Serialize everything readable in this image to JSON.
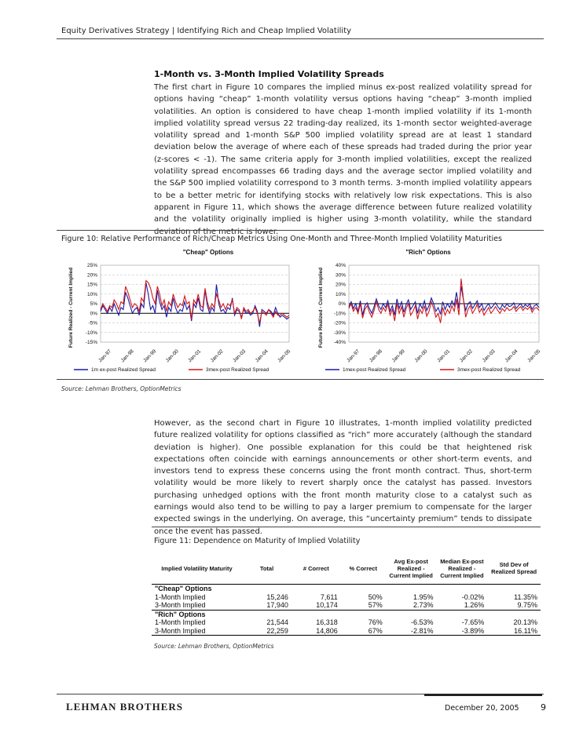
{
  "header": {
    "text": "Equity Derivatives Strategy | Identifying Rich and Cheap Implied Volatility"
  },
  "section": {
    "title": "1-Month vs. 3-Month Implied Volatility Spreads",
    "para1": "The first chart in Figure 10 compares the implied minus ex-post realized volatility spread for options having “cheap” 1-month volatility versus options having “cheap” 3-month implied volatilities. An option is considered to have cheap 1-month implied volatility if its 1-month implied volatility spread versus 22 trading-day realized, its 1-month sector weighted-average volatility spread and 1-month S&P 500 implied volatility spread are at least 1 standard deviation below the average of where each of these spreads had traded during the prior year (z-scores < -1). The same criteria apply for 3-month implied volatilities, except the realized volatility spread encompasses 66 trading days and the average sector implied volatility and the S&P 500 implied volatility correspond to 3 month terms. 3-month implied volatility appears to be a better metric for identifying stocks with relatively low risk expectations. This is also apparent in Figure 11, which shows the average difference between future realized volatility and the volatility originally implied is higher using 3-month volatility, while the standard deviation of the metric is lower.",
    "para2": "However, as the second chart in Figure 10 illustrates, 1-month implied volatility predicted future realized volatility for options classified as “rich” more accurately (although the standard deviation is higher). One possible explanation for this could be that heightened risk expectations often coincide with earnings announcements or other short-term events, and investors tend to express these concerns using the front month contract. Thus, short-term volatility would be more likely to revert sharply once the catalyst has passed. Investors purchasing unhedged options with the front month maturity close to a catalyst such as earnings would also tend to be willing to pay a larger premium to compensate for the larger expected swings in the underlying. On average, this “uncertainty premium” tends to dissipate once the event has passed."
  },
  "figure10": {
    "caption": "Figure 10: Relative Performance of Rich/Cheap Metrics Using One-Month and Three-Month Implied Volatility Maturities",
    "source": "Source: Lehman Brothers, OptionMetrics"
  },
  "chart_data": [
    {
      "type": "line",
      "title": "\"Cheap\" Options",
      "ylabel": "Future Realized - Current Implied",
      "ylim": [
        -0.15,
        0.25
      ],
      "yticks": [
        "25%",
        "20%",
        "15%",
        "10%",
        "5%",
        "0%",
        "-5%",
        "-10%",
        "-15%"
      ],
      "xticks": [
        "Jan-97",
        "Jan-98",
        "Jan-99",
        "Jan-00",
        "Jan-01",
        "Jan-02",
        "Jan-03",
        "Jan-04",
        "Jan-05"
      ],
      "series": [
        {
          "name": "1m ex-post Realized Spread",
          "color": "#1a1aa6",
          "values": [
            0.01,
            0.04,
            0.02,
            0.0,
            0.03,
            0.01,
            0.05,
            0.02,
            -0.01,
            0.03,
            0.02,
            0.11,
            0.08,
            0.04,
            0.0,
            0.02,
            0.03,
            -0.01,
            0.05,
            0.03,
            0.16,
            0.1,
            0.02,
            0.04,
            0.0,
            0.12,
            0.06,
            0.02,
            0.04,
            -0.02,
            0.03,
            0.01,
            0.08,
            0.03,
            0.0,
            0.02,
            0.01,
            0.06,
            0.02,
            0.04,
            -0.04,
            0.05,
            0.03,
            0.08,
            0.02,
            0.01,
            0.12,
            0.04,
            0.0,
            0.03,
            0.01,
            0.15,
            0.05,
            0.01,
            0.02,
            0.0,
            0.03,
            0.02,
            0.08,
            -0.01,
            0.02,
            0.01,
            -0.02,
            0.02,
            0.0,
            0.01,
            -0.01,
            0.0,
            0.04,
            0.01,
            -0.07,
            0.02,
            0.01,
            0.0,
            0.02,
            0.01,
            -0.01,
            0.03,
            0.0,
            -0.02,
            -0.01,
            -0.02,
            -0.03,
            -0.02
          ]
        },
        {
          "name": "3mex-post Realized Spread",
          "color": "#d01818",
          "values": [
            0.02,
            0.05,
            0.03,
            0.01,
            0.04,
            0.03,
            0.07,
            0.05,
            0.02,
            0.06,
            0.05,
            0.14,
            0.11,
            0.07,
            0.03,
            0.05,
            0.04,
            0.01,
            0.08,
            0.06,
            0.17,
            0.16,
            0.13,
            0.08,
            0.05,
            0.14,
            0.1,
            0.04,
            0.07,
            0.01,
            0.06,
            0.04,
            0.1,
            0.06,
            0.03,
            0.05,
            0.04,
            0.09,
            0.05,
            0.06,
            -0.03,
            0.07,
            0.05,
            0.1,
            0.04,
            0.03,
            0.13,
            0.06,
            0.02,
            0.05,
            0.03,
            0.1,
            0.07,
            0.03,
            0.05,
            0.02,
            0.05,
            0.04,
            0.07,
            0.0,
            0.03,
            0.02,
            -0.03,
            0.03,
            0.01,
            0.02,
            0.0,
            0.01,
            0.03,
            0.0,
            -0.05,
            0.01,
            0.0,
            -0.01,
            0.02,
            0.0,
            -0.02,
            0.01,
            -0.01,
            -0.01,
            0.0,
            -0.01,
            -0.02,
            -0.01
          ]
        }
      ]
    },
    {
      "type": "line",
      "title": "\"Rich\" Options",
      "ylabel": "Future Realized - Current Implied",
      "ylim": [
        -0.4,
        0.4
      ],
      "yticks": [
        "40%",
        "30%",
        "20%",
        "10%",
        "0%",
        "-10%",
        "-20%",
        "-30%",
        "-40%"
      ],
      "xticks": [
        "Jan-97",
        "Jan-98",
        "Jan-99",
        "Jan-00",
        "Jan-01",
        "Jan-02",
        "Jan-03",
        "Jan-04",
        "Jan-05"
      ],
      "series": [
        {
          "name": "1mex-post Realized Spread",
          "color": "#1a1aa6",
          "values": [
            -0.03,
            0.02,
            -0.05,
            0.0,
            -0.08,
            0.03,
            -0.12,
            -0.02,
            0.01,
            -0.05,
            -0.1,
            -0.03,
            0.05,
            -0.02,
            -0.06,
            0.0,
            -0.04,
            0.03,
            -0.08,
            -0.02,
            -0.12,
            0.05,
            -0.05,
            0.02,
            -0.09,
            -0.01,
            0.04,
            -0.06,
            -0.02,
            0.02,
            -0.1,
            0.0,
            -0.05,
            0.03,
            -0.07,
            -0.02,
            0.06,
            0.0,
            -0.08,
            -0.04,
            -0.11,
            0.02,
            -0.06,
            0.0,
            -0.04,
            0.03,
            -0.02,
            0.12,
            -0.05,
            0.18,
            0.04,
            -0.07,
            0.0,
            0.02,
            -0.05,
            -0.01,
            0.03,
            -0.04,
            0.0,
            -0.07,
            -0.03,
            0.0,
            -0.05,
            -0.02,
            0.01,
            -0.03,
            -0.06,
            -0.01,
            -0.04,
            0.0,
            -0.03,
            -0.02,
            0.01,
            -0.05,
            -0.02,
            0.0,
            -0.04,
            -0.01,
            -0.03,
            0.0,
            -0.06,
            -0.02,
            -0.01,
            -0.04
          ]
        },
        {
          "name": "3mex-post Realized Spread",
          "color": "#d01818",
          "values": [
            -0.05,
            0.0,
            -0.08,
            -0.04,
            -0.1,
            0.0,
            -0.15,
            -0.06,
            -0.02,
            -0.09,
            -0.14,
            -0.07,
            0.02,
            -0.06,
            -0.1,
            -0.04,
            -0.08,
            0.0,
            -0.12,
            -0.06,
            -0.18,
            0.0,
            -0.1,
            -0.03,
            -0.14,
            -0.05,
            0.0,
            -0.12,
            -0.08,
            -0.02,
            -0.16,
            -0.06,
            -0.1,
            -0.02,
            -0.13,
            -0.08,
            0.02,
            -0.05,
            -0.14,
            -0.1,
            -0.2,
            -0.04,
            -0.12,
            -0.06,
            -0.1,
            -0.02,
            -0.08,
            0.05,
            -0.12,
            0.26,
            0.05,
            -0.14,
            -0.06,
            -0.02,
            -0.1,
            -0.06,
            -0.01,
            -0.09,
            -0.05,
            -0.12,
            -0.08,
            -0.04,
            -0.1,
            -0.07,
            -0.03,
            -0.07,
            -0.1,
            -0.05,
            -0.08,
            -0.04,
            -0.07,
            -0.06,
            -0.03,
            -0.08,
            -0.05,
            -0.03,
            -0.07,
            -0.04,
            -0.06,
            -0.03,
            -0.09,
            -0.05,
            -0.04,
            -0.07
          ]
        }
      ]
    }
  ],
  "figure11": {
    "caption": "Figure 11: Dependence on Maturity of Implied Volatility",
    "source": "Source: Lehman Brothers, OptionMetrics",
    "headers": [
      "Implied Volatility Maturity",
      "Total",
      "# Correct",
      "% Correct",
      "Avg Ex-post Realized - Current Implied",
      "Median Ex-post Realized - Current Implied",
      "Std Dev of Realized Spread"
    ],
    "groups": [
      {
        "label": "\"Cheap\" Options",
        "rows": [
          [
            "1-Month Implied",
            "15,246",
            "7,611",
            "50%",
            "1.95%",
            "-0.02%",
            "11.35%"
          ],
          [
            "3-Month Implied",
            "17,940",
            "10,174",
            "57%",
            "2.73%",
            "1.26%",
            "9.75%"
          ]
        ]
      },
      {
        "label": "\"Rich\" Options",
        "rows": [
          [
            "1-Month Implied",
            "21,544",
            "16,318",
            "76%",
            "-6.53%",
            "-7.65%",
            "20.13%"
          ],
          [
            "3-Month Implied",
            "22,259",
            "14,806",
            "67%",
            "-2.81%",
            "-3.89%",
            "16.11%"
          ]
        ]
      }
    ]
  },
  "footer": {
    "logo": "LEHMAN BROTHERS",
    "date": "December 20, 2005",
    "page": "9"
  }
}
